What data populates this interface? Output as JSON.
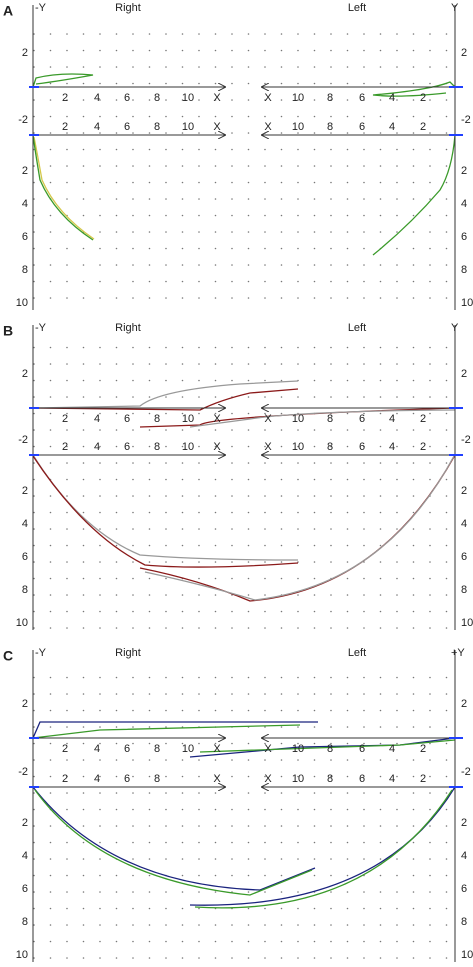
{
  "panels": [
    {
      "label": "A",
      "y_left": "-Y",
      "y_right": "Y",
      "right_title": "Right",
      "left_title": "Left",
      "upper_y_ticks": [
        "2"
      ],
      "lower_y_ticks": [
        "-2",
        "2",
        "4",
        "6",
        "8",
        "10"
      ],
      "upper_right_x_ticks": [
        "2",
        "4",
        "6",
        "8",
        "10",
        "X"
      ],
      "upper_left_x_ticks": [
        "X",
        "10",
        "8",
        "6",
        "4",
        "2"
      ],
      "lower_right_x_ticks": [
        "2",
        "4",
        "6",
        "8",
        "10",
        "X"
      ],
      "lower_left_x_ticks": [
        "X",
        "10",
        "8",
        "6",
        "4",
        "2"
      ]
    },
    {
      "label": "B",
      "y_left": "-Y",
      "y_right": "Y",
      "right_title": "Right",
      "left_title": "Left",
      "upper_y_ticks": [
        "2"
      ],
      "lower_y_ticks": [
        "-2",
        "2",
        "4",
        "6",
        "8",
        "10"
      ],
      "upper_right_x_ticks": [
        "2",
        "4",
        "6",
        "8",
        "10",
        "X"
      ],
      "upper_left_x_ticks": [
        "X",
        "10",
        "8",
        "6",
        "4",
        "2"
      ],
      "lower_right_x_ticks": [
        "2",
        "4",
        "6",
        "8",
        "10",
        "X"
      ],
      "lower_left_x_ticks": [
        "X",
        "10",
        "8",
        "6",
        "4",
        "2"
      ]
    },
    {
      "label": "C",
      "y_left": "-Y",
      "y_right": "+Y",
      "right_title": "Right",
      "left_title": "Left",
      "upper_y_ticks": [
        "2"
      ],
      "lower_y_ticks": [
        "-2",
        "2",
        "4",
        "6",
        "8",
        "10"
      ],
      "upper_right_x_ticks": [
        "2",
        "4",
        "6",
        "8",
        "10",
        "X"
      ],
      "upper_left_x_ticks": [
        "X",
        "10",
        "8",
        "6",
        "4",
        "2"
      ],
      "lower_right_x_ticks": [
        "2",
        "4",
        "6",
        "8",
        "X"
      ],
      "lower_left_x_ticks": [
        "X",
        "10",
        "8",
        "6",
        "4",
        "2"
      ]
    }
  ]
}
